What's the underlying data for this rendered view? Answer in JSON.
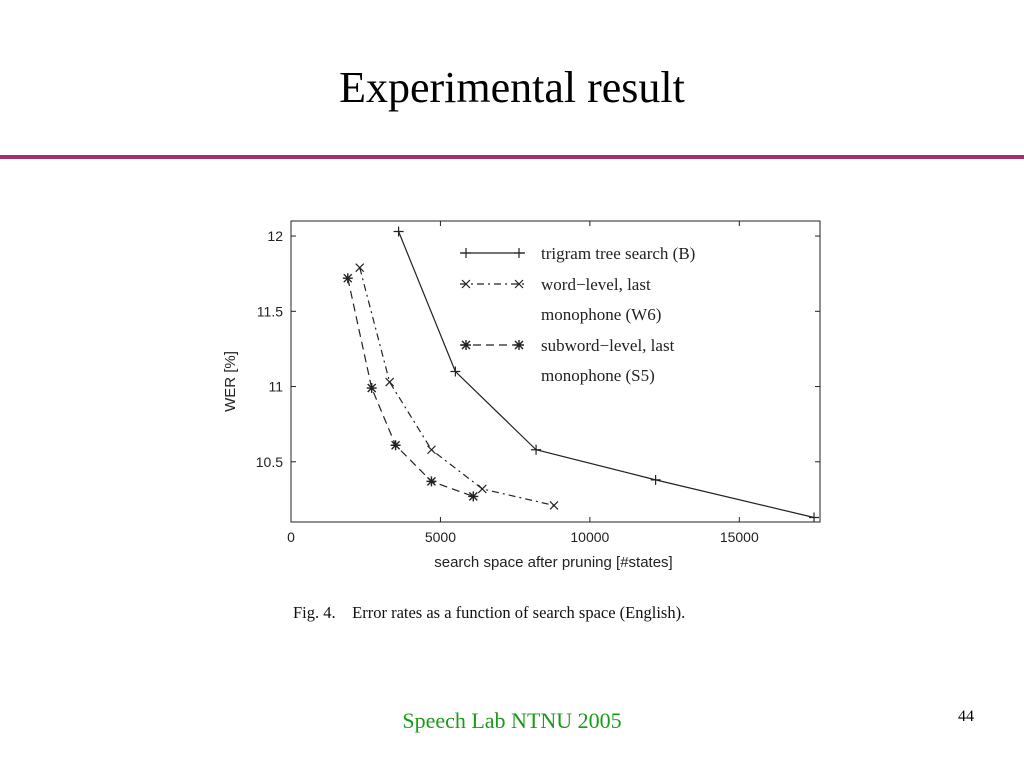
{
  "slide": {
    "title": "Experimental result",
    "caption": "Fig. 4.    Error rates as a function of search space (English).",
    "footer": "Speech Lab NTNU 2005",
    "page_number": "44"
  },
  "colors": {
    "rule": "#a0306a",
    "footer": "#1a9a1a",
    "plot": "#222222"
  },
  "chart_data": {
    "type": "line",
    "xlabel": "search space after pruning [#states]",
    "ylabel": "WER [%]",
    "xlim": [
      0,
      17700
    ],
    "ylim": [
      10.1,
      12.1
    ],
    "xticks": [
      0,
      5000,
      10000,
      15000
    ],
    "yticks": [
      10.5,
      11,
      11.5,
      12
    ],
    "xtick_labels": [
      "0",
      "5000",
      "10000",
      "15000"
    ],
    "ytick_labels": [
      "10.5",
      "11",
      "11.5",
      "12"
    ],
    "grid": false,
    "legend_position": "top-right",
    "series": [
      {
        "name": "trigram tree search (B)",
        "legend_lines": [
          "trigram tree search (B)"
        ],
        "marker": "plus",
        "dash": "none",
        "x": [
          3600,
          5500,
          8200,
          12200,
          17500
        ],
        "y": [
          12.03,
          11.1,
          10.58,
          10.38,
          10.13
        ]
      },
      {
        "name": "word−level, last monophone (W6)",
        "legend_lines": [
          "word−level, last",
          "monophone (W6)"
        ],
        "marker": "x",
        "dash": "dashdot",
        "x": [
          2300,
          3300,
          4700,
          6400,
          8800
        ],
        "y": [
          11.79,
          11.03,
          10.58,
          10.32,
          10.21
        ]
      },
      {
        "name": "subword−level, last monophone (S5)",
        "legend_lines": [
          "subword−level, last",
          "monophone (S5)"
        ],
        "marker": "star",
        "dash": "dashed",
        "x": [
          1900,
          2700,
          3500,
          4700,
          6100
        ],
        "y": [
          11.72,
          10.99,
          10.61,
          10.37,
          10.27
        ]
      }
    ]
  }
}
